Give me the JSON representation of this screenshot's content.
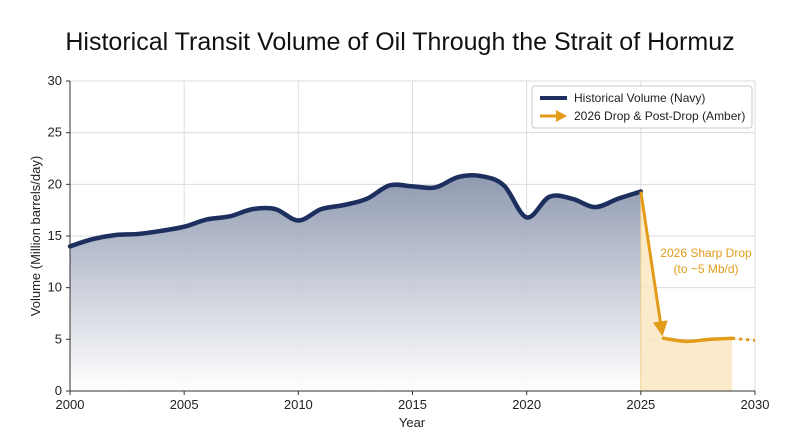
{
  "chart_data": {
    "type": "area",
    "title": "Historical Transit Volume of Oil Through the Strait of Hormuz",
    "xlabel": "Year",
    "ylabel": "Volume (Million barrels/day)",
    "xlim": [
      2000,
      2030
    ],
    "ylim": [
      0,
      30
    ],
    "x_ticks": [
      2000,
      2005,
      2010,
      2015,
      2020,
      2025,
      2030
    ],
    "y_ticks": [
      0,
      5,
      10,
      15,
      20,
      25,
      30
    ],
    "grid": true,
    "legend_position": "top-right",
    "series": [
      {
        "name": "Historical Volume (Navy)",
        "color": "#1c2f5e",
        "x": [
          2000,
          2001,
          2002,
          2003,
          2004,
          2005,
          2006,
          2007,
          2008,
          2009,
          2010,
          2011,
          2012,
          2013,
          2014,
          2015,
          2016,
          2017,
          2018,
          2019,
          2020,
          2021,
          2022,
          2023,
          2024,
          2025
        ],
        "y": [
          14.0,
          14.7,
          15.1,
          15.2,
          15.5,
          15.9,
          16.6,
          16.9,
          17.6,
          17.6,
          16.5,
          17.6,
          18.0,
          18.6,
          19.9,
          19.8,
          19.7,
          20.7,
          20.8,
          19.9,
          16.8,
          18.8,
          18.6,
          17.8,
          18.6,
          19.3
        ]
      },
      {
        "name": "2026 Drop & Post-Drop (Amber)",
        "color": "#e39b1a",
        "x": [
          2026,
          2027,
          2028,
          2029
        ],
        "y": [
          5.1,
          4.8,
          5.0,
          5.1
        ],
        "extension": {
          "x": [
            2029,
            2030
          ],
          "y": [
            5.1,
            4.9
          ]
        }
      }
    ],
    "annotations": [
      {
        "text_lines": [
          "2026 Sharp Drop",
          "(to ~5 Mb/d)"
        ],
        "color": "#e39b1a"
      }
    ]
  }
}
